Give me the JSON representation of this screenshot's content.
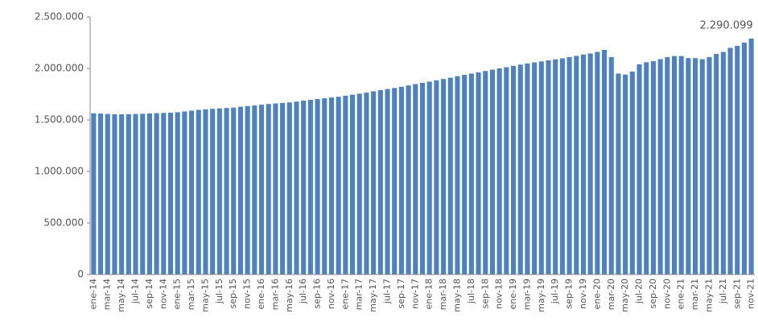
{
  "chart_data": {
    "type": "bar",
    "categories": [
      "ene-14",
      null,
      "mar-14",
      null,
      "may-14",
      null,
      "jul-14",
      null,
      "sep-14",
      null,
      "nov-14",
      null,
      "ene-15",
      null,
      "mar-15",
      null,
      "may-15",
      null,
      "jul-15",
      null,
      "sep-15",
      null,
      "nov-15",
      null,
      "ene-16",
      null,
      "mar-16",
      null,
      "may-16",
      null,
      "jul-16",
      null,
      "sep-16",
      null,
      "nov-16",
      null,
      "ene-17",
      null,
      "mar-17",
      null,
      "may-17",
      null,
      "jul-17",
      null,
      "sep-17",
      null,
      "nov-17",
      null,
      "ene-18",
      null,
      "mar-18",
      null,
      "may-18",
      null,
      "jul-18",
      null,
      "sep-18",
      null,
      "nov-18",
      null,
      "ene-19",
      null,
      "mar-19",
      null,
      "may-19",
      null,
      "jul-19",
      null,
      "sep-19",
      null,
      "nov-19",
      null,
      "ene-20",
      null,
      "mar-20",
      null,
      "may-20",
      null,
      "jul-20",
      null,
      "sep-20",
      null,
      "nov-20",
      null,
      "ene-21",
      null,
      "mar-21",
      null,
      "may-21",
      null,
      "jul-21",
      null,
      "sep-21",
      null,
      "nov-21"
    ],
    "values": [
      1565000,
      1562000,
      1558000,
      1555000,
      1555000,
      1556000,
      1558000,
      1560000,
      1563000,
      1566000,
      1568000,
      1570000,
      1575000,
      1582000,
      1590000,
      1598000,
      1603000,
      1608000,
      1612000,
      1616000,
      1620000,
      1628000,
      1635000,
      1640000,
      1648000,
      1655000,
      1660000,
      1665000,
      1670000,
      1678000,
      1688000,
      1695000,
      1703000,
      1710000,
      1718000,
      1725000,
      1735000,
      1745000,
      1755000,
      1765000,
      1778000,
      1790000,
      1800000,
      1810000,
      1822000,
      1835000,
      1848000,
      1860000,
      1872000,
      1885000,
      1897000,
      1910000,
      1925000,
      1938000,
      1950000,
      1962000,
      1975000,
      1988000,
      2000000,
      2012000,
      2025000,
      2037000,
      2048000,
      2058000,
      2068000,
      2078000,
      2088000,
      2098000,
      2110000,
      2122000,
      2135000,
      2145000,
      2160000,
      2180000,
      2110000,
      1950000,
      1940000,
      1970000,
      2040000,
      2060000,
      2070000,
      2090000,
      2110000,
      2120000,
      2120000,
      2100000,
      2100000,
      2090000,
      2110000,
      2140000,
      2160000,
      2200000,
      2220000,
      2250000,
      2290099
    ],
    "value_labels": [
      null,
      null,
      null,
      null,
      null,
      null,
      null,
      null,
      null,
      null,
      null,
      null,
      null,
      null,
      null,
      null,
      null,
      null,
      null,
      null,
      null,
      null,
      null,
      null,
      null,
      null,
      null,
      null,
      null,
      null,
      null,
      null,
      null,
      null,
      null,
      null,
      null,
      null,
      null,
      null,
      null,
      null,
      null,
      null,
      null,
      null,
      null,
      null,
      null,
      null,
      null,
      null,
      null,
      null,
      null,
      null,
      null,
      null,
      null,
      null,
      null,
      null,
      null,
      null,
      null,
      null,
      null,
      null,
      null,
      null,
      null,
      null,
      null,
      null,
      null,
      null,
      null,
      null,
      null,
      null,
      null,
      null,
      null,
      null,
      null,
      null,
      null,
      null,
      null,
      null,
      null,
      null,
      null,
      null,
      "2.290.099"
    ],
    "color": "#4f81bd",
    "ylim": [
      0,
      2500000
    ],
    "yticks": [
      0,
      {
        "value": 500000,
        "label": "500.000"
      },
      {
        "value": 1000000,
        "label": "1.000.000"
      },
      {
        "value": 1500000,
        "label": "1.500.000"
      },
      {
        "value": 2000000,
        "label": "2.000.000"
      },
      {
        "value": 2500000,
        "label": "2.500.000"
      }
    ],
    "grid": false
  }
}
